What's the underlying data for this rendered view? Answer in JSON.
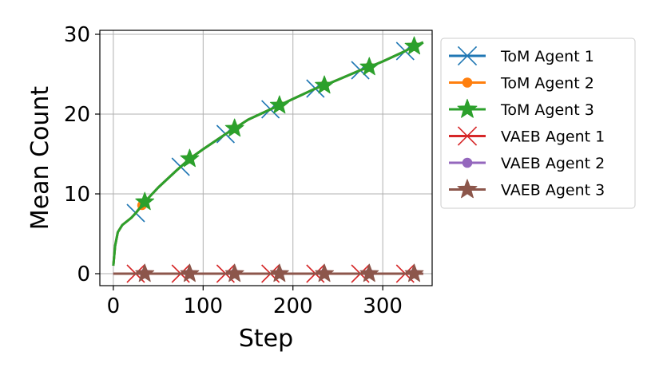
{
  "chart_data": {
    "type": "line",
    "title": "",
    "xlabel": "Step",
    "ylabel": "Mean Count",
    "xlim": [
      -15,
      355
    ],
    "ylim": [
      -1.5,
      30.5
    ],
    "xticks": [
      0,
      100,
      200,
      300
    ],
    "yticks": [
      0,
      10,
      20,
      30
    ],
    "grid": true,
    "legend_position": "outside-right",
    "x": [
      0,
      2,
      5,
      10,
      20,
      25,
      35,
      50,
      70,
      85,
      100,
      125,
      135,
      150,
      175,
      185,
      200,
      225,
      235,
      250,
      275,
      285,
      300,
      325,
      335,
      345
    ],
    "series": [
      {
        "name": "ToM Agent 1",
        "color": "#1f77b4",
        "marker": "x",
        "values": [
          1.0,
          3.5,
          5.2,
          6.1,
          7.0,
          7.6,
          9.0,
          10.8,
          12.9,
          14.4,
          15.6,
          17.5,
          18.2,
          19.3,
          20.6,
          21.1,
          21.9,
          23.2,
          23.6,
          24.3,
          25.5,
          25.9,
          26.6,
          27.9,
          28.5,
          29.0
        ],
        "marker_x": [
          25,
          75,
          125,
          175,
          225,
          275,
          325
        ]
      },
      {
        "name": "ToM Agent 2",
        "color": "#ff7f0e",
        "marker": "o",
        "values": [
          1.0,
          3.5,
          5.2,
          6.1,
          7.0,
          7.6,
          9.0,
          10.8,
          12.9,
          14.4,
          15.6,
          17.5,
          18.2,
          19.3,
          20.6,
          21.1,
          21.9,
          23.2,
          23.6,
          24.3,
          25.5,
          25.9,
          26.6,
          27.9,
          28.5,
          29.0
        ],
        "marker_x": [
          32,
          85,
          135,
          185,
          235,
          285,
          335
        ]
      },
      {
        "name": "ToM Agent 3",
        "color": "#2ca02c",
        "marker": "*",
        "values": [
          1.0,
          3.5,
          5.2,
          6.1,
          7.0,
          7.6,
          9.0,
          10.8,
          12.9,
          14.4,
          15.6,
          17.5,
          18.2,
          19.3,
          20.6,
          21.1,
          21.9,
          23.2,
          23.6,
          24.3,
          25.5,
          25.9,
          26.6,
          27.9,
          28.5,
          29.0
        ],
        "marker_x": [
          35,
          85,
          135,
          185,
          235,
          285,
          335
        ]
      },
      {
        "name": "VAEB Agent 1",
        "color": "#d62728",
        "marker": "x",
        "values": [
          0,
          0,
          0,
          0,
          0,
          0,
          0,
          0,
          0,
          0,
          0,
          0,
          0,
          0,
          0,
          0,
          0,
          0,
          0,
          0,
          0,
          0,
          0,
          0,
          0,
          0
        ],
        "marker_x": [
          25,
          75,
          125,
          175,
          225,
          275,
          325
        ]
      },
      {
        "name": "VAEB Agent 2",
        "color": "#9467bd",
        "marker": "o",
        "values": [
          0,
          0,
          0,
          0,
          0,
          0,
          0,
          0,
          0,
          0,
          0,
          0,
          0,
          0,
          0,
          0,
          0,
          0,
          0,
          0,
          0,
          0,
          0,
          0,
          0,
          0
        ],
        "marker_x": [
          35,
          85,
          135,
          185,
          235,
          285,
          335
        ]
      },
      {
        "name": "VAEB Agent 3",
        "color": "#8c564b",
        "marker": "*",
        "values": [
          0,
          0,
          0,
          0,
          0,
          0,
          0,
          0,
          0,
          0,
          0,
          0,
          0,
          0,
          0,
          0,
          0,
          0,
          0,
          0,
          0,
          0,
          0,
          0,
          0,
          0
        ],
        "marker_x": [
          35,
          85,
          135,
          185,
          235,
          285,
          335
        ]
      }
    ]
  }
}
